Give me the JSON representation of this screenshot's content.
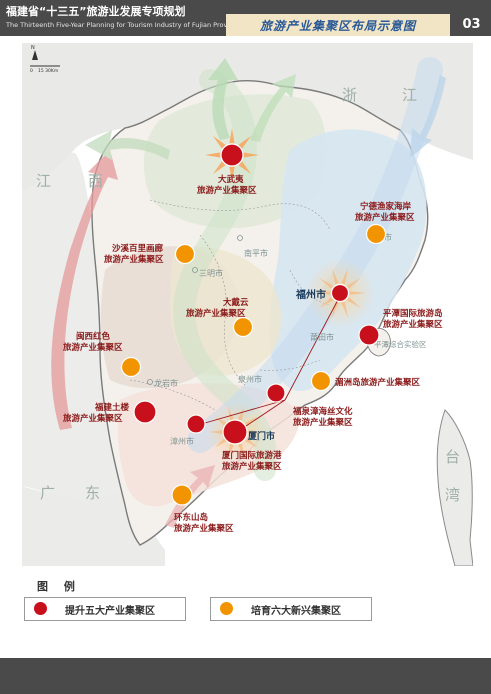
{
  "header": {
    "title_cn": "福建省“十三五”旅游业发展专项规划",
    "title_en": "The Thirteenth Five-Year Planning for Tourism Industry of Fujian Province",
    "map_title": "旅游产业集聚区布局示意图",
    "page_number": "03"
  },
  "map": {
    "scale_zero": "0",
    "scale_label": "15  30Km",
    "north_label": "N",
    "regions": {
      "zhejiang_1": "浙",
      "zhejiang_2": "江",
      "jiangxi_1": "江",
      "jiangxi_2": "西",
      "guangdong_1": "广",
      "guangdong_2": "东",
      "taiwan_1": "台",
      "taiwan_2": "湾"
    },
    "cities": {
      "nanping": "南平市",
      "sanming": "三明市",
      "ningde": "宁德市",
      "fuzhou": "福州市",
      "putian": "莆田市",
      "longyan": "龙岩市",
      "quanzhou": "泉州市",
      "zhangzhou": "漳州市",
      "xiamen": "厦门市",
      "pingtan_zone": "平潭综合实验区"
    },
    "clusters": {
      "wuyishan": [
        "大武夷",
        "旅游产业集聚区"
      ],
      "ningde": [
        "宁德渔家海岸",
        "旅游产业集聚区"
      ],
      "shaxi": [
        "沙溪百里画廊",
        "旅游产业集聚区"
      ],
      "daiyun": [
        "大戴云",
        "旅游产业集聚区"
      ],
      "pingtan": [
        "平潭国际旅游岛",
        "旅游产业集聚区"
      ],
      "minxi": [
        "闽西红色",
        "旅游产业集聚区"
      ],
      "meizhou": [
        "湄洲岛旅游产业集聚区"
      ],
      "tulou": [
        "福建土楼",
        "旅游产业集聚区"
      ],
      "silk": [
        "福泉漳海丝文化",
        "旅游产业集聚区"
      ],
      "xiamen": [
        "厦门国际旅游港",
        "旅游产业集聚区"
      ],
      "dongshan": [
        "环东山岛",
        "旅游产业集聚区"
      ]
    }
  },
  "legend": {
    "title": "图 例",
    "items": [
      {
        "label": "提升五大产业集聚区",
        "color": "#c8101d"
      },
      {
        "label": "培育六大新兴集聚区",
        "color": "#f29400"
      }
    ]
  },
  "colors": {
    "header_bg": "#4a4a4a",
    "tab_bg": "#f2e5c6",
    "tab_text": "#2a5a97",
    "red_cluster": "#c8101d",
    "orange_cluster": "#f29400",
    "label_red": "#8b1a1a",
    "sea": "#ffffff"
  }
}
